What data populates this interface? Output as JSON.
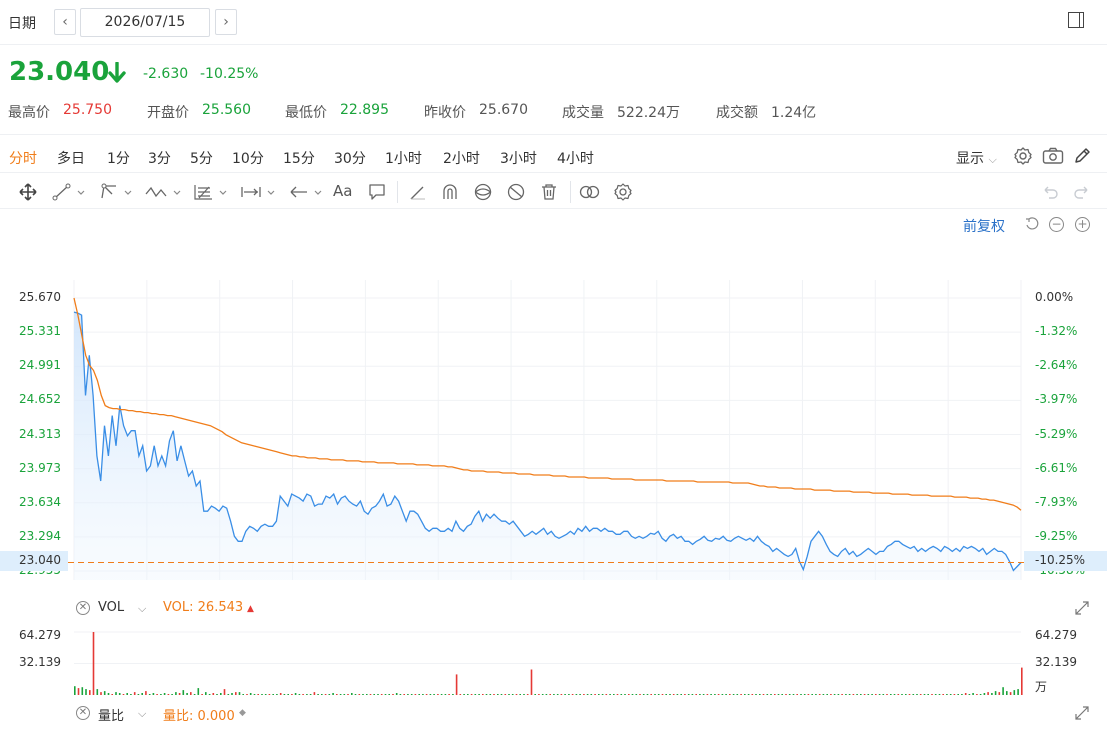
{
  "header": {
    "date_label": "日期",
    "date_value": "2026/07/15",
    "prev": "‹",
    "next": "›"
  },
  "quote": {
    "price": "23.040",
    "change": "-2.630",
    "change_pct": "-10.25%",
    "stats": [
      {
        "label": "最高价",
        "value": "25.750",
        "color": "#e53935"
      },
      {
        "label": "开盘价",
        "value": "25.560",
        "color": "#1aa33b"
      },
      {
        "label": "最低价",
        "value": "22.895",
        "color": "#1aa33b"
      },
      {
        "label": "昨收价",
        "value": "25.670",
        "color": "#555555"
      },
      {
        "label": "成交量",
        "value": "522.24万",
        "color": "#555555"
      },
      {
        "label": "成交额",
        "value": "1.24亿",
        "color": "#555555"
      }
    ]
  },
  "periods": [
    "分时",
    "多日",
    "1分",
    "3分",
    "5分",
    "10分",
    "15分",
    "30分",
    "1小时",
    "2小时",
    "3小时",
    "4小时"
  ],
  "active_period": "分时",
  "toolbar_right": {
    "display": "显示",
    "chevron": "⌄"
  },
  "drawing_tools": [
    "move-icon",
    "line-icon",
    "ray-icon",
    "wave-icon",
    "fib-icon",
    "measure-icon",
    "arrow-icon",
    "text-icon",
    "comment-icon",
    "pen-icon",
    "magnet-icon",
    "eye-icon",
    "hide-icon",
    "delete-icon",
    "link-icon",
    "settings-icon"
  ],
  "drawing_text_glyph": "Aa",
  "adjust": {
    "label": "前复权"
  },
  "axes": {
    "left": [
      "25.670",
      "25.331",
      "24.991",
      "24.652",
      "24.313",
      "23.973",
      "23.634",
      "23.294",
      "22.955"
    ],
    "right": [
      "0.00%",
      "-1.32%",
      "-2.64%",
      "-3.97%",
      "-5.29%",
      "-6.61%",
      "-7.93%",
      "-9.25%",
      "-10.58%"
    ],
    "current_price": "23.040",
    "current_pct": "-10.25%"
  },
  "volume": {
    "title": "VOL",
    "value_label": "VOL: 26.543",
    "arrow": "▲",
    "ticks": [
      "64.279",
      "32.139"
    ],
    "unit": "万"
  },
  "ratio": {
    "title": "量比",
    "value_label": "量比: 0.000",
    "dot": "◆"
  },
  "chart_data": {
    "type": "line",
    "y_range": [
      22.955,
      25.67
    ],
    "series": [
      {
        "values": [
          25.53,
          25.52,
          25.5,
          24.7,
          25.1,
          24.7,
          24.1,
          23.85,
          24.4,
          24.1,
          24.5,
          24.2,
          24.6,
          24.4,
          24.3,
          24.35,
          24.35,
          24.1,
          24.2,
          23.95,
          24.0,
          24.2,
          24.0,
          24.1,
          24.0,
          24.25,
          24.35,
          24.05,
          24.2,
          24.05,
          23.9,
          23.95,
          23.8,
          23.85,
          23.55,
          23.55,
          23.6,
          23.58,
          23.55,
          23.6,
          23.58,
          23.45,
          23.3,
          23.25,
          23.25,
          23.35,
          23.4,
          23.38,
          23.35,
          23.4,
          23.42,
          23.4,
          23.4,
          23.45,
          23.7,
          23.65,
          23.6,
          23.72,
          23.7,
          23.68,
          23.65,
          23.72,
          23.7,
          23.6,
          23.62,
          23.62,
          23.7,
          23.68,
          23.72,
          23.62,
          23.68,
          23.7,
          23.65,
          23.62,
          23.6,
          23.65,
          23.55,
          23.52,
          23.58,
          23.6,
          23.65,
          23.72,
          23.6,
          23.62,
          23.7,
          23.65,
          23.55,
          23.45,
          23.55,
          23.55,
          23.52,
          23.45,
          23.38,
          23.35,
          23.38,
          23.38,
          23.35,
          23.35,
          23.38,
          23.35,
          23.45,
          23.38,
          23.35,
          23.4,
          23.42,
          23.5,
          23.55,
          23.45,
          23.52,
          23.48,
          23.52,
          23.48,
          23.45,
          23.45,
          23.42,
          23.45,
          23.4,
          23.35,
          23.3,
          23.32,
          23.35,
          23.32,
          23.35,
          23.38,
          23.32,
          23.35,
          23.3,
          23.28,
          23.3,
          23.32,
          23.35,
          23.32,
          23.38,
          23.35,
          23.4,
          23.35,
          23.38,
          23.38,
          23.35,
          23.38,
          23.35,
          23.35,
          23.32,
          23.32,
          23.35,
          23.35,
          23.3,
          23.28,
          23.3,
          23.28,
          23.3,
          23.33,
          23.32,
          23.35,
          23.28,
          23.25,
          23.3,
          23.32,
          23.28,
          23.3,
          23.25,
          23.25,
          23.22,
          23.25,
          23.27,
          23.3,
          23.26,
          23.25,
          23.28,
          23.27,
          23.3,
          23.26,
          23.25,
          23.28,
          23.3,
          23.28,
          23.26,
          23.28,
          23.25,
          23.3,
          23.25,
          23.22,
          23.2,
          23.15,
          23.18,
          23.15,
          23.12,
          23.1,
          23.12,
          23.18,
          23.05,
          22.97,
          23.1,
          23.25,
          23.3,
          23.35,
          23.3,
          23.22,
          23.15,
          23.12,
          23.1,
          23.15,
          23.18,
          23.12,
          23.15,
          23.1,
          23.12,
          23.15,
          23.18,
          23.15,
          23.12,
          23.15,
          23.15,
          23.2,
          23.22,
          23.25,
          23.25,
          23.22,
          23.2,
          23.18,
          23.2,
          23.15,
          23.18,
          23.15,
          23.18,
          23.2,
          23.18,
          23.15,
          23.2,
          23.18,
          23.15,
          23.18,
          23.15,
          23.2,
          23.18,
          23.2,
          23.18,
          23.15,
          23.18,
          23.12,
          23.15,
          23.18,
          23.15,
          23.15,
          23.12,
          23.05,
          22.96,
          23.0,
          23.04
        ]
      },
      {
        "values": [
          25.67,
          25.5,
          25.3,
          25.1,
          25.0,
          24.95,
          24.85,
          24.7,
          24.6,
          24.58,
          24.57,
          24.57,
          24.56,
          24.56,
          24.55,
          24.55,
          24.54,
          24.54,
          24.53,
          24.53,
          24.52,
          24.52,
          24.51,
          24.51,
          24.5,
          24.5,
          24.49,
          24.48,
          24.47,
          24.46,
          24.45,
          24.44,
          24.43,
          24.42,
          24.41,
          24.4,
          24.38,
          24.36,
          24.34,
          24.31,
          24.29,
          24.27,
          24.25,
          24.23,
          24.22,
          24.21,
          24.2,
          24.19,
          24.18,
          24.17,
          24.16,
          24.15,
          24.14,
          24.13,
          24.12,
          24.11,
          24.1,
          24.1,
          24.09,
          24.09,
          24.08,
          24.08,
          24.08,
          24.07,
          24.07,
          24.07,
          24.06,
          24.06,
          24.06,
          24.06,
          24.05,
          24.05,
          24.05,
          24.05,
          24.04,
          24.04,
          24.04,
          24.04,
          24.03,
          24.03,
          24.03,
          24.03,
          24.03,
          24.02,
          24.02,
          24.02,
          24.02,
          24.02,
          24.01,
          24.01,
          24.01,
          24.01,
          24.0,
          24.0,
          24.0,
          24.0,
          23.99,
          23.99,
          23.98,
          23.97,
          23.96,
          23.96,
          23.95,
          23.95,
          23.95,
          23.95,
          23.94,
          23.94,
          23.94,
          23.94,
          23.93,
          23.93,
          23.93,
          23.93,
          23.92,
          23.92,
          23.92,
          23.92,
          23.91,
          23.91,
          23.91,
          23.91,
          23.91,
          23.9,
          23.9,
          23.9,
          23.9,
          23.89,
          23.89,
          23.89,
          23.89,
          23.89,
          23.88,
          23.88,
          23.88,
          23.88,
          23.88,
          23.88,
          23.87,
          23.87,
          23.87,
          23.87,
          23.87,
          23.87,
          23.86,
          23.86,
          23.86,
          23.86,
          23.86,
          23.86,
          23.86,
          23.86,
          23.85,
          23.85,
          23.85,
          23.85,
          23.85,
          23.85,
          23.85,
          23.85,
          23.84,
          23.84,
          23.84,
          23.84,
          23.84,
          23.84,
          23.84,
          23.84,
          23.84,
          23.83,
          23.83,
          23.83,
          23.83,
          23.83,
          23.82,
          23.81,
          23.8,
          23.8,
          23.79,
          23.79,
          23.79,
          23.78,
          23.78,
          23.78,
          23.78,
          23.77,
          23.77,
          23.77,
          23.77,
          23.77,
          23.76,
          23.76,
          23.76,
          23.76,
          23.76,
          23.75,
          23.75,
          23.75,
          23.75,
          23.75,
          23.74,
          23.74,
          23.74,
          23.74,
          23.74,
          23.73,
          23.73,
          23.73,
          23.73,
          23.73,
          23.72,
          23.72,
          23.72,
          23.72,
          23.72,
          23.71,
          23.71,
          23.71,
          23.71,
          23.71,
          23.7,
          23.7,
          23.7,
          23.7,
          23.7,
          23.7,
          23.69,
          23.69,
          23.69,
          23.69,
          23.68,
          23.68,
          23.68,
          23.67,
          23.67,
          23.66,
          23.66,
          23.65,
          23.64,
          23.63,
          23.62,
          23.61,
          23.59,
          23.56
        ]
      }
    ],
    "volume": {
      "ylim": [
        0,
        64.279
      ],
      "bars": [
        9,
        7,
        8,
        6,
        5,
        64.279,
        6,
        3,
        4,
        2,
        1,
        3,
        2,
        1,
        2,
        1,
        3,
        1,
        2,
        4,
        1,
        2,
        1,
        1,
        2,
        1,
        1,
        3,
        2,
        5,
        2,
        3,
        1,
        7,
        1,
        3,
        1,
        2,
        1,
        2,
        6,
        1,
        2,
        3,
        3,
        1,
        1,
        2,
        1,
        1,
        1,
        1,
        1,
        1,
        1,
        2,
        1,
        1,
        1,
        2,
        1,
        1,
        1,
        1,
        3,
        1,
        1,
        1,
        1,
        2,
        1,
        1,
        1,
        1,
        2,
        1,
        1,
        1,
        1,
        1,
        1,
        1,
        1,
        1,
        1,
        1,
        2,
        1,
        1,
        1,
        1,
        1,
        1,
        1,
        1,
        1,
        1,
        1,
        1,
        1,
        1,
        1,
        1,
        1,
        1,
        1,
        1,
        1,
        1,
        1,
        1,
        1,
        1,
        1,
        1,
        1,
        1,
        1,
        1,
        1,
        1,
        1,
        1,
        1,
        1,
        1,
        1,
        1,
        1,
        1,
        1,
        1,
        1,
        1,
        1,
        1,
        1,
        1,
        1,
        1,
        1,
        1,
        1,
        1,
        1,
        1,
        1,
        1,
        1,
        1,
        1,
        1,
        1,
        1,
        1,
        1,
        1,
        1,
        1,
        1,
        1,
        1,
        1,
        1,
        1,
        1,
        1,
        1,
        1,
        1,
        1,
        1,
        1,
        1,
        1,
        1,
        1,
        1,
        1,
        1,
        1,
        1,
        1,
        1,
        1,
        1,
        1,
        1,
        1,
        1,
        1,
        1,
        1,
        1,
        1,
        1,
        1,
        1,
        1,
        1,
        1,
        1,
        1,
        1,
        1,
        1,
        1,
        1,
        1,
        1,
        1,
        1,
        1,
        1,
        1,
        1,
        1,
        1,
        1,
        1,
        1,
        1,
        1,
        1,
        1,
        1,
        1,
        1,
        1,
        1,
        1,
        1,
        1,
        1,
        1,
        1,
        1,
        1,
        2,
        1,
        2,
        1,
        1,
        2,
        3,
        2,
        4,
        3,
        8,
        4,
        3,
        5,
        6,
        28
      ],
      "spikes": [
        {
          "index": 102,
          "value": 21
        },
        {
          "index": 122,
          "value": 26
        }
      ],
      "up_color": "#e53935",
      "down_color": "#1aa33b"
    },
    "price_color": "#3a8ee6",
    "avg_color": "#f07d1a",
    "ref_line_color": "#f07d1a"
  }
}
